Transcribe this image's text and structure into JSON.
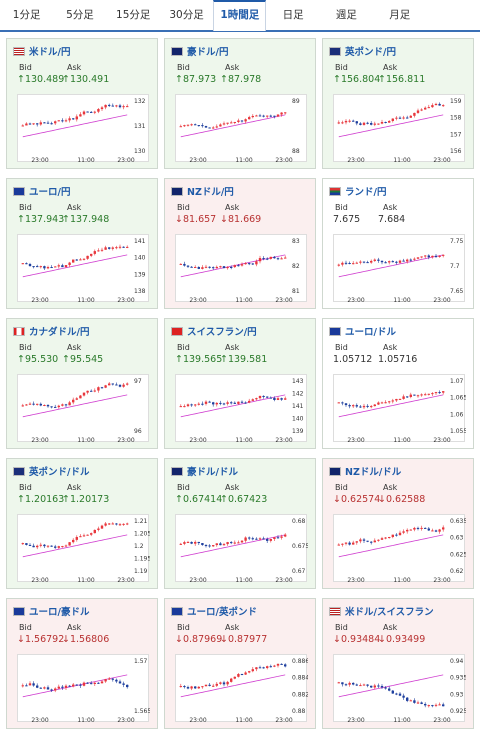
{
  "tabs": [
    {
      "label": "1分足",
      "active": false
    },
    {
      "label": "5分足",
      "active": false
    },
    {
      "label": "15分足",
      "active": false
    },
    {
      "label": "30分足",
      "active": false
    },
    {
      "label": "1時間足",
      "active": true
    },
    {
      "label": "日足",
      "active": false
    },
    {
      "label": "週足",
      "active": false
    },
    {
      "label": "月足",
      "active": false
    }
  ],
  "labels": {
    "bid": "Bid",
    "ask": "Ask"
  },
  "cards": [
    {
      "pair": "米ドル/円",
      "flag": "us-flag",
      "bid": "↑130.489",
      "ask": "↑130.491",
      "trend": "up",
      "chart_data": {
        "type": "candlestick",
        "x_ticks": [
          "23:00",
          "11:00",
          "23:00"
        ],
        "y_ticks": [
          "132",
          "131",
          "130"
        ]
      }
    },
    {
      "pair": "豪ドル/円",
      "flag": "au-flag",
      "bid": "↑87.973",
      "ask": "↑87.978",
      "trend": "up",
      "chart_data": {
        "type": "candlestick",
        "x_ticks": [
          "23:00",
          "11:00",
          "23:00"
        ],
        "y_ticks": [
          "89",
          "88"
        ]
      }
    },
    {
      "pair": "英ポンド/円",
      "flag": "gb-flag",
      "bid": "↑156.804",
      "ask": "↑156.811",
      "trend": "up",
      "chart_data": {
        "type": "candlestick",
        "x_ticks": [
          "23:00",
          "11:00",
          "23:00"
        ],
        "y_ticks": [
          "159",
          "158",
          "157",
          "156"
        ]
      }
    },
    {
      "pair": "ユーロ/円",
      "flag": "eu-flag",
      "bid": "↑137.943",
      "ask": "↑137.948",
      "trend": "up",
      "chart_data": {
        "type": "candlestick",
        "x_ticks": [
          "23:00",
          "11:00",
          "23:00"
        ],
        "y_ticks": [
          "141",
          "140",
          "139",
          "138"
        ]
      }
    },
    {
      "pair": "NZドル/円",
      "flag": "nz-flag",
      "bid": "↓81.657",
      "ask": "↓81.669",
      "trend": "down",
      "chart_data": {
        "type": "candlestick",
        "x_ticks": [
          "23:00",
          "11:00",
          "23:00"
        ],
        "y_ticks": [
          "83",
          "82",
          "81"
        ]
      }
    },
    {
      "pair": "ランド/円",
      "flag": "za-flag",
      "bid": "7.675",
      "ask": "7.684",
      "trend": "flat",
      "chart_data": {
        "type": "candlestick",
        "x_ticks": [
          "23:00",
          "11:00",
          "23:00"
        ],
        "y_ticks": [
          "7.75",
          "7.7",
          "7.65"
        ]
      }
    },
    {
      "pair": "カナダドル/円",
      "flag": "ca-flag",
      "bid": "↑95.530",
      "ask": "↑95.545",
      "trend": "up",
      "chart_data": {
        "type": "candlestick",
        "x_ticks": [
          "23:00",
          "11:00",
          "23:00"
        ],
        "y_ticks": [
          "97",
          "96"
        ]
      }
    },
    {
      "pair": "スイスフラン/円",
      "flag": "ch-flag",
      "bid": "↑139.565",
      "ask": "↑139.581",
      "trend": "up",
      "chart_data": {
        "type": "candlestick",
        "x_ticks": [
          "23:00",
          "11:00",
          "23:00"
        ],
        "y_ticks": [
          "143",
          "142",
          "141",
          "140",
          "139"
        ]
      }
    },
    {
      "pair": "ユーロ/ドル",
      "flag": "eu-flag",
      "bid": "1.05712",
      "ask": "1.05716",
      "trend": "flat",
      "chart_data": {
        "type": "candlestick",
        "x_ticks": [
          "23:00",
          "11:00",
          "23:00"
        ],
        "y_ticks": [
          "1.07",
          "1.065",
          "1.06",
          "1.055"
        ]
      }
    },
    {
      "pair": "英ポンド/ドル",
      "flag": "gb-flag",
      "bid": "↑1.20163",
      "ask": "↑1.20173",
      "trend": "up",
      "chart_data": {
        "type": "candlestick",
        "x_ticks": [
          "23:00",
          "11:00",
          "23:00"
        ],
        "y_ticks": [
          "1.21",
          "1.205",
          "1.2",
          "1.195",
          "1.19"
        ]
      }
    },
    {
      "pair": "豪ドル/ドル",
      "flag": "au-flag",
      "bid": "↑0.67414",
      "ask": "↑0.67423",
      "trend": "up",
      "chart_data": {
        "type": "candlestick",
        "x_ticks": [
          "23:00",
          "11:00",
          "23:00"
        ],
        "y_ticks": [
          "0.68",
          "0.675",
          "0.67"
        ]
      }
    },
    {
      "pair": "NZドル/ドル",
      "flag": "nz-flag",
      "bid": "↓0.62574",
      "ask": "↓0.62588",
      "trend": "down",
      "chart_data": {
        "type": "candlestick",
        "x_ticks": [
          "23:00",
          "11:00",
          "23:00"
        ],
        "y_ticks": [
          "0.635",
          "0.63",
          "0.625",
          "0.62"
        ]
      }
    },
    {
      "pair": "ユーロ/豪ドル",
      "flag": "eu-flag",
      "bid": "↓1.56792",
      "ask": "↓1.56806",
      "trend": "down",
      "chart_data": {
        "type": "candlestick",
        "x_ticks": [
          "23:00",
          "11:00",
          "23:00"
        ],
        "y_ticks": [
          "1.57",
          "1.565"
        ]
      }
    },
    {
      "pair": "ユーロ/英ポンド",
      "flag": "eu-flag",
      "bid": "↓0.87969",
      "ask": "↓0.87977",
      "trend": "down",
      "chart_data": {
        "type": "candlestick",
        "x_ticks": [
          "23:00",
          "11:00",
          "23:00"
        ],
        "y_ticks": [
          "0.886",
          "0.884",
          "0.882",
          "0.88"
        ]
      }
    },
    {
      "pair": "米ドル/スイスフラン",
      "flag": "us-flag",
      "bid": "↓0.93484",
      "ask": "↓0.93499",
      "trend": "down",
      "chart_data": {
        "type": "candlestick",
        "x_ticks": [
          "23:00",
          "11:00",
          "23:00"
        ],
        "y_ticks": [
          "0.94",
          "0.935",
          "0.93",
          "0.925"
        ]
      }
    }
  ],
  "colors": {
    "up_bg": "#eef7ec",
    "down_bg": "#fbefef",
    "candle_up": "#e8363c",
    "candle_down": "#1e3f9e",
    "ma_line": "#d040d0",
    "trend_line": "#2aa8a8"
  }
}
